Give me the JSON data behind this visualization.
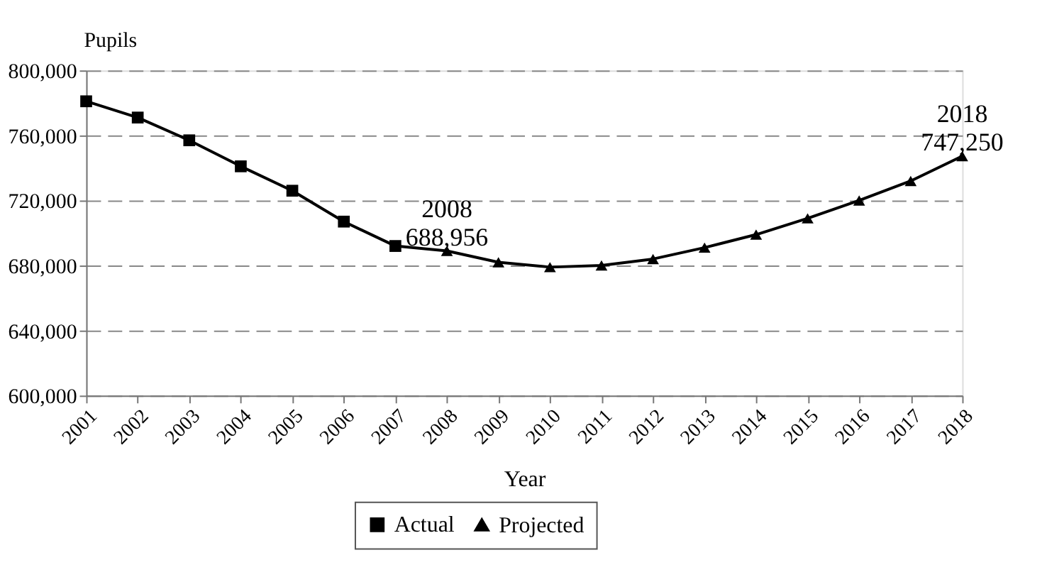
{
  "chart_data": {
    "type": "line",
    "ylabel": "Pupils",
    "xlabel": "Year",
    "categories": [
      "2001",
      "2002",
      "2003",
      "2004",
      "2005",
      "2006",
      "2007",
      "2008",
      "2009",
      "2010",
      "2011",
      "2012",
      "2013",
      "2014",
      "2015",
      "2016",
      "2017",
      "2018"
    ],
    "series": [
      {
        "name": "Actual",
        "color": "#000000",
        "marker": "square",
        "values": [
          781000,
          771000,
          757000,
          741000,
          726000,
          707000,
          692000,
          null,
          null,
          null,
          null,
          null,
          null,
          null,
          null,
          null,
          null,
          null
        ]
      },
      {
        "name": "Projected",
        "color": "#000000",
        "marker": "triangle",
        "values": [
          null,
          null,
          null,
          null,
          null,
          null,
          692000,
          688956,
          682000,
          679000,
          680000,
          684000,
          691000,
          699000,
          709000,
          720000,
          732000,
          747250
        ]
      }
    ],
    "ylim": [
      600000,
      800000
    ],
    "yticks": [
      {
        "value": 600000,
        "label": "600,000"
      },
      {
        "value": 640000,
        "label": "640,000"
      },
      {
        "value": 680000,
        "label": "680,000"
      },
      {
        "value": 720000,
        "label": "720,000"
      },
      {
        "value": 760000,
        "label": "760,000"
      },
      {
        "value": 800000,
        "label": "800,000"
      }
    ],
    "grid": "y",
    "legend": "bottom",
    "line_style": "solid",
    "annotations": [
      {
        "text": "2008 688,956",
        "x": "2008",
        "y": 688956
      },
      {
        "text": "2018 747,250",
        "x": "2018",
        "y": 747250
      }
    ]
  }
}
